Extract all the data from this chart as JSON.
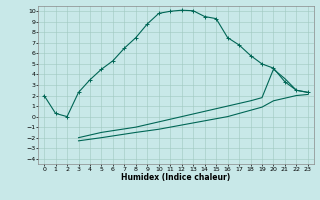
{
  "title": "",
  "xlabel": "Humidex (Indice chaleur)",
  "bg_color": "#c8e8e8",
  "grid_color": "#a0c8c0",
  "line_color": "#006655",
  "xlim": [
    -0.5,
    23.5
  ],
  "ylim": [
    -4.5,
    10.5
  ],
  "xticks": [
    0,
    1,
    2,
    3,
    4,
    5,
    6,
    7,
    8,
    9,
    10,
    11,
    12,
    13,
    14,
    15,
    16,
    17,
    18,
    19,
    20,
    21,
    22,
    23
  ],
  "yticks": [
    10,
    9,
    8,
    7,
    6,
    5,
    4,
    3,
    2,
    1,
    0,
    -1,
    -2,
    -3,
    -4
  ],
  "curve1_x": [
    0,
    1,
    2,
    3,
    4,
    5,
    6,
    7,
    8,
    9,
    10,
    11,
    12,
    13,
    14,
    15,
    16,
    17,
    18,
    19,
    20,
    21,
    22,
    23
  ],
  "curve1_y": [
    2.0,
    0.3,
    0.0,
    2.3,
    3.5,
    4.5,
    5.3,
    6.5,
    7.5,
    8.8,
    9.8,
    10.0,
    10.1,
    10.05,
    9.5,
    9.3,
    7.5,
    6.8,
    5.8,
    5.0,
    4.6,
    3.3,
    2.5,
    2.3
  ],
  "curve2_x": [
    3,
    5,
    8,
    10,
    12,
    14,
    16,
    18,
    19,
    20,
    21,
    22,
    23
  ],
  "curve2_y": [
    -2.0,
    -1.5,
    -1.0,
    -0.5,
    0.0,
    0.5,
    1.0,
    1.5,
    1.8,
    4.5,
    3.6,
    2.5,
    2.3
  ],
  "curve3_x": [
    3,
    5,
    8,
    10,
    12,
    14,
    16,
    18,
    19,
    20,
    22,
    23
  ],
  "curve3_y": [
    -2.3,
    -2.0,
    -1.5,
    -1.2,
    -0.8,
    -0.4,
    0.0,
    0.6,
    0.9,
    1.5,
    2.0,
    2.1
  ]
}
